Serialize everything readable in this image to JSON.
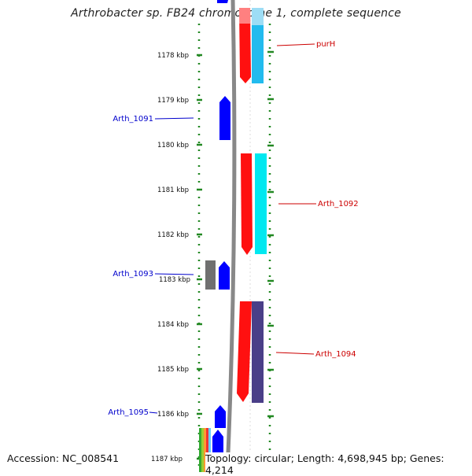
{
  "title": "Arthrobacter sp. FB24 chromosome 1, complete sequence",
  "accession": "Accession: NC_008541",
  "topology": "Topology: circular; Length: 4,698,945 bp; Genes: 4,214",
  "colors": {
    "forward_gene": "#0000ff",
    "reverse_gene": "#ff0000",
    "other_feature": "#707070",
    "label_blue": "#0000cc",
    "label_red": "#cc0000",
    "ruler": "#228822",
    "backbone": "#888888",
    "track_cyan": "#00e8f0",
    "track_lightblue": "#22bbee",
    "track_purple": "#4a3f88"
  },
  "ruler_ticks": [
    "1178 kbp",
    "1179 kbp",
    "1180 kbp",
    "1181 kbp",
    "1182 kbp",
    "1183 kbp",
    "1184 kbp",
    "1185 kbp",
    "1186 kbp",
    "1187 kbp"
  ],
  "gene_labels": [
    {
      "text": "purH",
      "side": "right",
      "strand": "reverse"
    },
    {
      "text": "Arth_1091",
      "side": "left",
      "strand": "forward"
    },
    {
      "text": "Arth_1092",
      "side": "right",
      "strand": "reverse"
    },
    {
      "text": "Arth_1093",
      "side": "left",
      "strand": "forward"
    },
    {
      "text": "Arth_1094",
      "side": "right",
      "strand": "reverse"
    },
    {
      "text": "Arth_1095",
      "side": "left",
      "strand": "forward"
    }
  ]
}
